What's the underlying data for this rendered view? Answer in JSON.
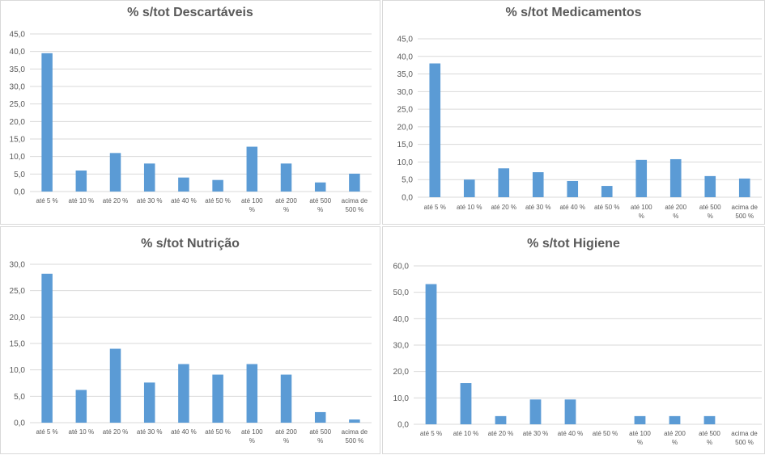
{
  "chart_data": [
    {
      "type": "bar",
      "title": "% s/tot Descartáveis",
      "categories": [
        "até 5 %",
        "até 10 %",
        "até 20 %",
        "até 30 %",
        "até 40 %",
        "até 50 %",
        "até 100 %",
        "até 200 %",
        "até 500 %",
        "acima de 500 %"
      ],
      "values": [
        39.5,
        6.0,
        11.0,
        8.0,
        4.0,
        3.3,
        12.8,
        8.0,
        2.6,
        5.1
      ],
      "yticks": [
        "0,0",
        "5,0",
        "10,0",
        "15,0",
        "20,0",
        "25,0",
        "30,0",
        "35,0",
        "40,0",
        "45,0"
      ],
      "ylim": [
        0,
        45
      ],
      "xlabel": "",
      "ylabel": "",
      "grid": true,
      "bar_color": "#5b9bd5"
    },
    {
      "type": "bar",
      "title": "% s/tot Medicamentos",
      "categories": [
        "até 5 %",
        "até 10 %",
        "até 20 %",
        "até 30 %",
        "até 40 %",
        "até 50 %",
        "até 100 %",
        "até 200 %",
        "até 500 %",
        "acima de 500 %"
      ],
      "values": [
        38.0,
        5.0,
        8.2,
        7.1,
        4.6,
        3.2,
        10.6,
        10.8,
        6.0,
        5.3
      ],
      "yticks": [
        "0,0",
        "5,0",
        "10,0",
        "15,0",
        "20,0",
        "25,0",
        "30,0",
        "35,0",
        "40,0",
        "45,0"
      ],
      "ylim": [
        0,
        45
      ],
      "xlabel": "",
      "ylabel": "",
      "grid": true,
      "bar_color": "#5b9bd5"
    },
    {
      "type": "bar",
      "title": "% s/tot Nutrição",
      "categories": [
        "até 5 %",
        "até 10 %",
        "até 20 %",
        "até 30 %",
        "até 40 %",
        "até 50 %",
        "até 100 %",
        "até 200 %",
        "até 500 %",
        "acima de 500 %"
      ],
      "values": [
        28.2,
        6.2,
        14.0,
        7.6,
        11.1,
        9.1,
        11.1,
        9.1,
        2.0,
        0.6
      ],
      "yticks": [
        "0,0",
        "5,0",
        "10,0",
        "15,0",
        "20,0",
        "25,0",
        "30,0"
      ],
      "ylim": [
        0,
        30
      ],
      "xlabel": "",
      "ylabel": "",
      "grid": true,
      "bar_color": "#5b9bd5"
    },
    {
      "type": "bar",
      "title": "% s/tot Higiene",
      "categories": [
        "até 5 %",
        "até 10 %",
        "até 20 %",
        "até 30 %",
        "até 40 %",
        "até 50 %",
        "até 100 %",
        "até 200 %",
        "até 500 %",
        "acima de 500 %"
      ],
      "values": [
        53.1,
        15.6,
        3.1,
        9.4,
        9.4,
        0,
        3.1,
        3.1,
        3.1,
        0
      ],
      "yticks": [
        "0,0",
        "10,0",
        "20,0",
        "30,0",
        "40,0",
        "50,0",
        "60,0"
      ],
      "ylim": [
        0,
        60
      ],
      "xlabel": "",
      "ylabel": "",
      "grid": true,
      "bar_color": "#5b9bd5"
    }
  ]
}
